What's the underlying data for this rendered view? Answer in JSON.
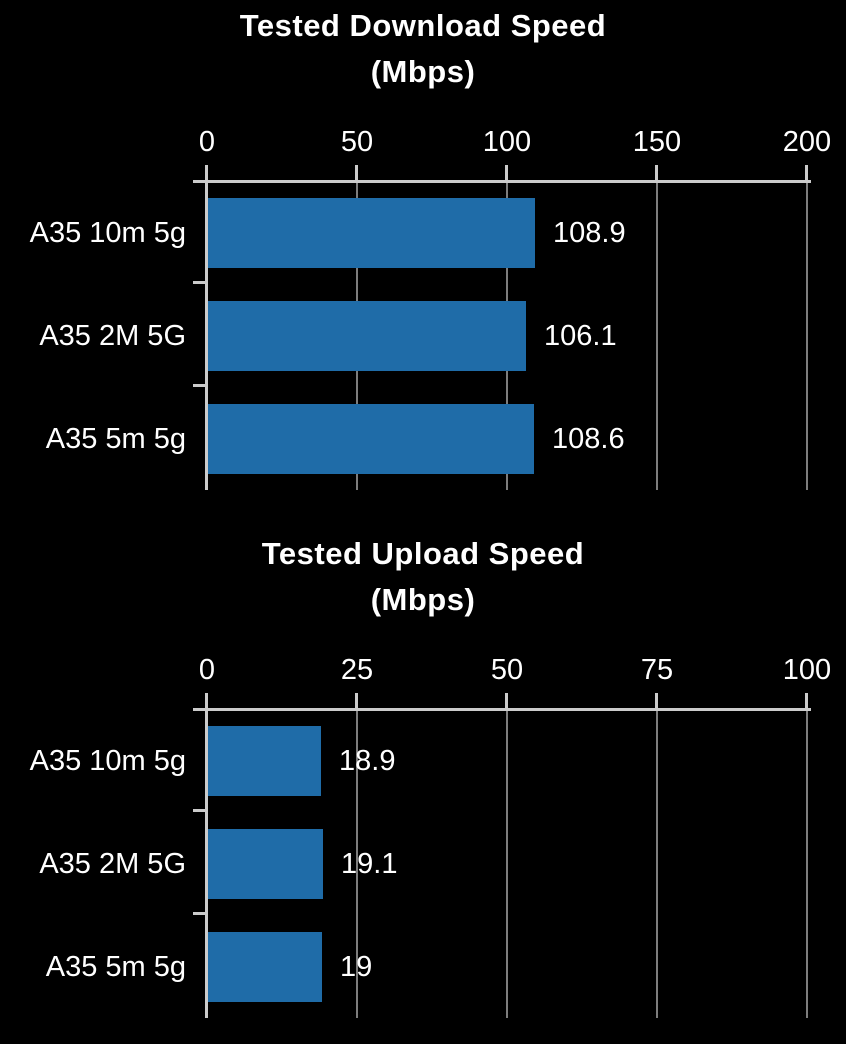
{
  "page": {
    "background_color": "#000000",
    "text_color": "#ffffff",
    "axis_color": "#cbcbcb",
    "gridline_color": "#7d7d7d"
  },
  "chart_data": [
    {
      "type": "bar",
      "orientation": "horizontal",
      "title": "Tested Download Speed",
      "subtitle": "(Mbps)",
      "categories": [
        "A35 10m 5g",
        "A35 2M 5G",
        "A35 5m 5g"
      ],
      "values": [
        108.9,
        106.1,
        108.6
      ],
      "value_labels": [
        "108.9",
        "106.1",
        "108.6"
      ],
      "xlim": [
        0,
        200
      ],
      "x_ticks": [
        0,
        50,
        100,
        150,
        200
      ],
      "x_tick_labels": [
        "0",
        "50",
        "100",
        "150",
        "200"
      ],
      "grid": true,
      "legend": "none",
      "bar_color": "#1f6ca8"
    },
    {
      "type": "bar",
      "orientation": "horizontal",
      "title": "Tested Upload Speed",
      "subtitle": "(Mbps)",
      "categories": [
        "A35 10m 5g",
        "A35 2M 5G",
        "A35 5m 5g"
      ],
      "values": [
        18.9,
        19.1,
        19
      ],
      "value_labels": [
        "18.9",
        "19.1",
        "19"
      ],
      "xlim": [
        0,
        100
      ],
      "x_ticks": [
        0,
        25,
        50,
        75,
        100
      ],
      "x_tick_labels": [
        "0",
        "25",
        "50",
        "75",
        "100"
      ],
      "grid": true,
      "legend": "none",
      "bar_color": "#1f6ca8"
    }
  ]
}
